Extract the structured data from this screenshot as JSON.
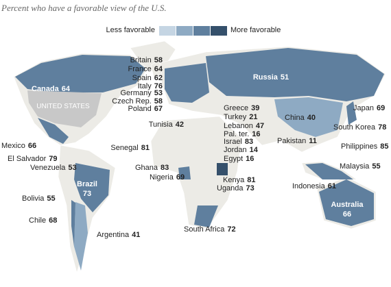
{
  "title": "Percent who have a favorable view of the U.S.",
  "legend": {
    "low_label": "Less favorable",
    "high_label": "More favorable",
    "colors": [
      "#c5d5e3",
      "#8eaac3",
      "#5f7f9e",
      "#35506b"
    ]
  },
  "unlabeled_country": "UNITED STATES",
  "countries": [
    {
      "name": "Britain",
      "value": 58
    },
    {
      "name": "France",
      "value": 64
    },
    {
      "name": "Spain",
      "value": 62
    },
    {
      "name": "Italy",
      "value": 76
    },
    {
      "name": "Germany",
      "value": 53
    },
    {
      "name": "Czech Rep.",
      "value": 58
    },
    {
      "name": "Poland",
      "value": 67
    },
    {
      "name": "Russia",
      "value": 51
    },
    {
      "name": "Canada",
      "value": 64
    },
    {
      "name": "Tunisia",
      "value": 42
    },
    {
      "name": "Greece",
      "value": 39
    },
    {
      "name": "Turkey",
      "value": 21
    },
    {
      "name": "Lebanon",
      "value": 47
    },
    {
      "name": "Pal. ter.",
      "value": 16
    },
    {
      "name": "Israel",
      "value": 83
    },
    {
      "name": "Jordan",
      "value": 14
    },
    {
      "name": "Egypt",
      "value": 16
    },
    {
      "name": "China",
      "value": 40
    },
    {
      "name": "Japan",
      "value": 69
    },
    {
      "name": "South Korea",
      "value": 78
    },
    {
      "name": "Pakistan",
      "value": 11
    },
    {
      "name": "Philippines",
      "value": 85
    },
    {
      "name": "Malaysia",
      "value": 55
    },
    {
      "name": "Indonesia",
      "value": 61
    },
    {
      "name": "Australia",
      "value": 66
    },
    {
      "name": "Senegal",
      "value": 81
    },
    {
      "name": "Ghana",
      "value": 83
    },
    {
      "name": "Nigeria",
      "value": 69
    },
    {
      "name": "Kenya",
      "value": 81
    },
    {
      "name": "Uganda",
      "value": 73
    },
    {
      "name": "Mexico",
      "value": 66
    },
    {
      "name": "El Salvador",
      "value": 79
    },
    {
      "name": "Venezuela",
      "value": 53
    },
    {
      "name": "Brazil",
      "value": 73
    },
    {
      "name": "Bolivia",
      "value": 55
    },
    {
      "name": "Chile",
      "value": 68
    },
    {
      "name": "Argentina",
      "value": 41
    },
    {
      "name": "South Africa",
      "value": 72
    }
  ]
}
